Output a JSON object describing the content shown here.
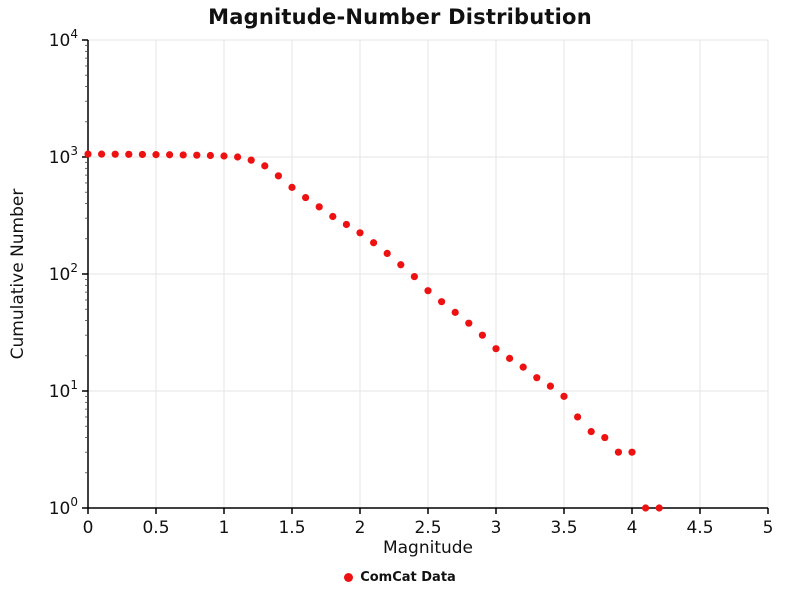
{
  "chart_data": {
    "type": "scatter",
    "title": "Magnitude-Number Distribution",
    "xlabel": "Magnitude",
    "ylabel": "Cumulative Number",
    "xlim": [
      0,
      5
    ],
    "x_ticks": [
      0,
      0.5,
      1,
      1.5,
      2,
      2.5,
      3,
      3.5,
      4,
      4.5,
      5
    ],
    "x_tick_labels": [
      "0",
      "0.5",
      "1",
      "1.5",
      "2",
      "2.5",
      "3",
      "3.5",
      "4",
      "4.5",
      "5"
    ],
    "y_scale": "log",
    "ylim": [
      1,
      10000
    ],
    "y_exponents": [
      0,
      1,
      2,
      3,
      4
    ],
    "grid": true,
    "legend_position": "bottom",
    "colors": {
      "marker": "#ee1111",
      "grid": "#e5e5e5",
      "axis": "#000000",
      "text": "#111111"
    },
    "series": [
      {
        "name": "ComCat Data",
        "color": "#ee1111",
        "x": [
          0.0,
          0.1,
          0.2,
          0.3,
          0.4,
          0.5,
          0.6,
          0.7,
          0.8,
          0.9,
          1.0,
          1.1,
          1.2,
          1.3,
          1.4,
          1.5,
          1.6,
          1.7,
          1.8,
          1.9,
          2.0,
          2.1,
          2.2,
          2.3,
          2.4,
          2.5,
          2.6,
          2.7,
          2.8,
          2.9,
          3.0,
          3.1,
          3.2,
          3.3,
          3.4,
          3.5,
          3.6,
          3.7,
          3.8,
          3.9,
          4.0,
          4.1,
          4.2
        ],
        "y": [
          1060,
          1058,
          1056,
          1054,
          1051,
          1048,
          1045,
          1041,
          1036,
          1030,
          1020,
          1000,
          940,
          840,
          690,
          550,
          450,
          375,
          310,
          265,
          225,
          185,
          150,
          120,
          95,
          72,
          58,
          47,
          38,
          30,
          23,
          19,
          16,
          13,
          11,
          9,
          6,
          4.5,
          4,
          3,
          3,
          1,
          1
        ]
      }
    ]
  }
}
